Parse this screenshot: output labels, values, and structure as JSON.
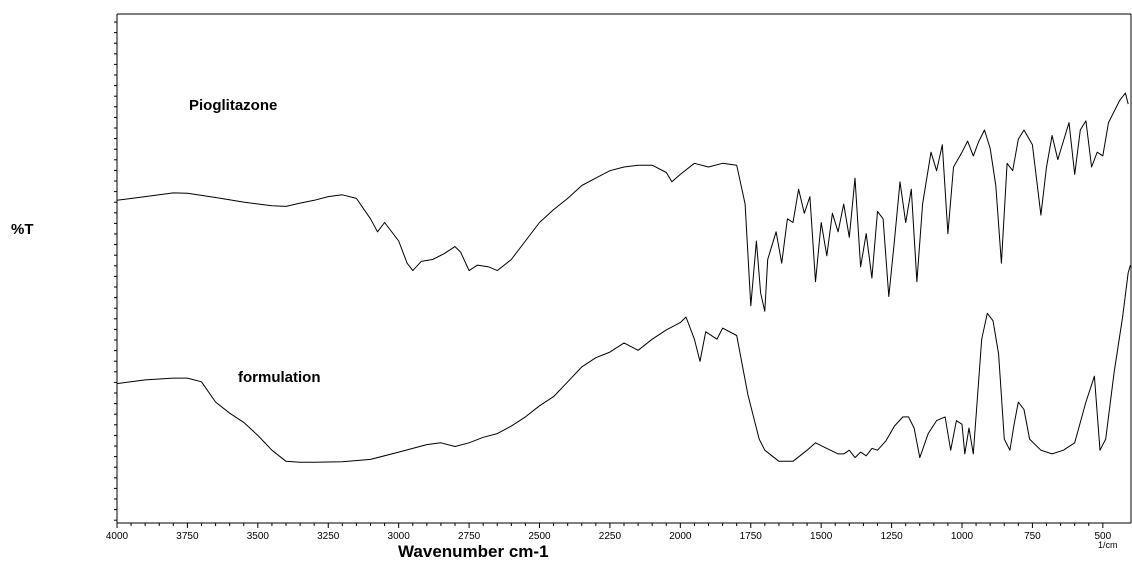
{
  "chart_data": {
    "type": "line",
    "xlabel": "Wavenumber cm-1",
    "ylabel": "%T",
    "x_unit": "1/cm",
    "xlim": [
      4000,
      400
    ],
    "x_reversed": true,
    "x_ticks": [
      4000,
      3750,
      3500,
      3250,
      3000,
      2750,
      2500,
      2250,
      2000,
      1750,
      1500,
      1250,
      1000,
      750,
      500
    ],
    "y_ticks_labeled": false,
    "grid": false,
    "series": [
      {
        "name": "Pioglitazone",
        "points": [
          [
            4000,
            62
          ],
          [
            3900,
            64
          ],
          [
            3800,
            66
          ],
          [
            3750,
            65.8
          ],
          [
            3650,
            63.5
          ],
          [
            3550,
            61
          ],
          [
            3450,
            59
          ],
          [
            3400,
            58.7
          ],
          [
            3350,
            60.5
          ],
          [
            3300,
            62
          ],
          [
            3250,
            64
          ],
          [
            3200,
            65
          ],
          [
            3150,
            63
          ],
          [
            3100,
            52
          ],
          [
            3075,
            45
          ],
          [
            3050,
            50
          ],
          [
            3000,
            40
          ],
          [
            2970,
            28
          ],
          [
            2950,
            24
          ],
          [
            2920,
            29
          ],
          [
            2880,
            30
          ],
          [
            2840,
            33
          ],
          [
            2800,
            37
          ],
          [
            2780,
            34
          ],
          [
            2750,
            24
          ],
          [
            2720,
            27
          ],
          [
            2680,
            26
          ],
          [
            2650,
            24
          ],
          [
            2600,
            30
          ],
          [
            2550,
            40
          ],
          [
            2500,
            50
          ],
          [
            2450,
            57
          ],
          [
            2400,
            63
          ],
          [
            2350,
            70
          ],
          [
            2300,
            74
          ],
          [
            2250,
            78
          ],
          [
            2200,
            80
          ],
          [
            2150,
            81
          ],
          [
            2100,
            81
          ],
          [
            2050,
            77
          ],
          [
            2030,
            72
          ],
          [
            2000,
            76
          ],
          [
            1950,
            82
          ],
          [
            1900,
            80
          ],
          [
            1850,
            82
          ],
          [
            1800,
            81
          ],
          [
            1770,
            60
          ],
          [
            1750,
            5
          ],
          [
            1730,
            40
          ],
          [
            1715,
            12
          ],
          [
            1700,
            2
          ],
          [
            1690,
            30
          ],
          [
            1660,
            45
          ],
          [
            1640,
            28
          ],
          [
            1620,
            52
          ],
          [
            1600,
            50
          ],
          [
            1580,
            68
          ],
          [
            1560,
            55
          ],
          [
            1540,
            64
          ],
          [
            1520,
            18
          ],
          [
            1500,
            50
          ],
          [
            1480,
            32
          ],
          [
            1460,
            55
          ],
          [
            1440,
            45
          ],
          [
            1420,
            60
          ],
          [
            1400,
            42
          ],
          [
            1380,
            74
          ],
          [
            1360,
            26
          ],
          [
            1340,
            44
          ],
          [
            1320,
            20
          ],
          [
            1300,
            56
          ],
          [
            1280,
            52
          ],
          [
            1260,
            10
          ],
          [
            1240,
            40
          ],
          [
            1220,
            72
          ],
          [
            1200,
            50
          ],
          [
            1180,
            68
          ],
          [
            1160,
            18
          ],
          [
            1140,
            60
          ],
          [
            1110,
            88
          ],
          [
            1090,
            78
          ],
          [
            1070,
            92
          ],
          [
            1050,
            44
          ],
          [
            1030,
            80
          ],
          [
            1000,
            88
          ],
          [
            980,
            94
          ],
          [
            960,
            86
          ],
          [
            940,
            94
          ],
          [
            920,
            100
          ],
          [
            900,
            90
          ],
          [
            880,
            70
          ],
          [
            860,
            28
          ],
          [
            840,
            82
          ],
          [
            820,
            78
          ],
          [
            800,
            95
          ],
          [
            780,
            100
          ],
          [
            750,
            92
          ],
          [
            720,
            54
          ],
          [
            700,
            80
          ],
          [
            680,
            97
          ],
          [
            660,
            84
          ],
          [
            640,
            94
          ],
          [
            620,
            104
          ],
          [
            600,
            76
          ],
          [
            580,
            100
          ],
          [
            560,
            105
          ],
          [
            540,
            80
          ],
          [
            520,
            88
          ],
          [
            500,
            86
          ],
          [
            480,
            104
          ],
          [
            460,
            110
          ],
          [
            440,
            116
          ],
          [
            420,
            120
          ],
          [
            410,
            114
          ]
        ]
      },
      {
        "name": "formulation",
        "points": [
          [
            4000,
            24
          ],
          [
            3900,
            26
          ],
          [
            3800,
            27
          ],
          [
            3750,
            27
          ],
          [
            3700,
            25
          ],
          [
            3650,
            14
          ],
          [
            3600,
            8
          ],
          [
            3550,
            3
          ],
          [
            3500,
            -4
          ],
          [
            3450,
            -12
          ],
          [
            3400,
            -18
          ],
          [
            3350,
            -18.5
          ],
          [
            3300,
            -18.5
          ],
          [
            3200,
            -18.2
          ],
          [
            3100,
            -17
          ],
          [
            3000,
            -13
          ],
          [
            2900,
            -9
          ],
          [
            2850,
            -8
          ],
          [
            2800,
            -10
          ],
          [
            2750,
            -8
          ],
          [
            2700,
            -5
          ],
          [
            2650,
            -3
          ],
          [
            2600,
            1
          ],
          [
            2550,
            6
          ],
          [
            2500,
            12
          ],
          [
            2450,
            17
          ],
          [
            2400,
            25
          ],
          [
            2350,
            33
          ],
          [
            2300,
            38
          ],
          [
            2250,
            41
          ],
          [
            2200,
            46
          ],
          [
            2150,
            42
          ],
          [
            2100,
            48
          ],
          [
            2050,
            53
          ],
          [
            2000,
            57
          ],
          [
            1980,
            60
          ],
          [
            1950,
            48
          ],
          [
            1930,
            36
          ],
          [
            1910,
            52
          ],
          [
            1870,
            48
          ],
          [
            1850,
            54
          ],
          [
            1800,
            50
          ],
          [
            1760,
            18
          ],
          [
            1720,
            -6
          ],
          [
            1700,
            -12
          ],
          [
            1650,
            -18
          ],
          [
            1600,
            -18
          ],
          [
            1550,
            -12
          ],
          [
            1520,
            -8
          ],
          [
            1480,
            -11
          ],
          [
            1440,
            -14
          ],
          [
            1420,
            -14
          ],
          [
            1400,
            -12
          ],
          [
            1380,
            -16
          ],
          [
            1360,
            -13
          ],
          [
            1340,
            -15
          ],
          [
            1320,
            -11
          ],
          [
            1300,
            -12
          ],
          [
            1270,
            -7
          ],
          [
            1240,
            1
          ],
          [
            1210,
            6
          ],
          [
            1190,
            6
          ],
          [
            1170,
            0
          ],
          [
            1150,
            -16
          ],
          [
            1120,
            -3
          ],
          [
            1090,
            4
          ],
          [
            1060,
            6
          ],
          [
            1040,
            -12
          ],
          [
            1020,
            4
          ],
          [
            1000,
            2
          ],
          [
            990,
            -14
          ],
          [
            975,
            0
          ],
          [
            960,
            -14
          ],
          [
            930,
            48
          ],
          [
            910,
            62
          ],
          [
            890,
            58
          ],
          [
            870,
            40
          ],
          [
            850,
            -6
          ],
          [
            830,
            -12
          ],
          [
            815,
            2
          ],
          [
            800,
            14
          ],
          [
            780,
            10
          ],
          [
            760,
            -6
          ],
          [
            720,
            -12
          ],
          [
            680,
            -14
          ],
          [
            640,
            -12
          ],
          [
            600,
            -8
          ],
          [
            560,
            14
          ],
          [
            530,
            28
          ],
          [
            510,
            -12
          ],
          [
            490,
            -6
          ],
          [
            460,
            30
          ],
          [
            430,
            60
          ],
          [
            410,
            84
          ],
          [
            402,
            88
          ]
        ]
      }
    ]
  }
}
